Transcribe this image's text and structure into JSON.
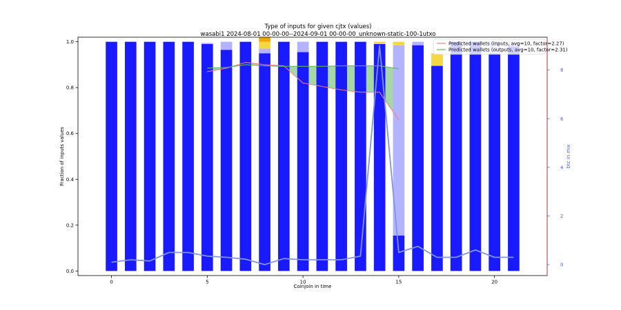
{
  "chart_data": {
    "type": "bar",
    "title": "Type of inputs for given cjtx (values)",
    "subtitle": "wasabi1 2024-08-01 00-00-00--2024-09-01 00-00-00_unknown-static-100-1utxo",
    "xlabel": "Coinjoin in time",
    "ylabel": "Fraction of inputs values",
    "y2label": "btc in mix",
    "xlim": [
      -1.75,
      22.75
    ],
    "ylim": [
      -0.02,
      1.02
    ],
    "y2lim": [
      -0.45,
      9.35
    ],
    "x_ticks": [
      0,
      5,
      10,
      15,
      20
    ],
    "y_ticks": [
      0.0,
      0.2,
      0.4,
      0.6,
      0.8,
      1.0
    ],
    "y2_ticks": [
      0,
      2,
      4,
      6,
      8
    ],
    "x": [
      0,
      1,
      2,
      3,
      4,
      5,
      6,
      7,
      8,
      9,
      10,
      11,
      12,
      13,
      14,
      15,
      16,
      17,
      18,
      19,
      20,
      21
    ],
    "stacked_series": [
      {
        "color": "#1a1aff",
        "values": [
          1.0,
          1.0,
          1.0,
          1.0,
          1.0,
          0.99,
          0.965,
          1.0,
          0.95,
          1.0,
          0.955,
          1.0,
          1.0,
          1.0,
          0.99,
          0.155,
          0.985,
          0.895,
          1.0,
          1.0,
          0.95,
          0.98
        ]
      },
      {
        "color": "#b3b3ff",
        "values": [
          0,
          0,
          0,
          0,
          0,
          0.005,
          0.035,
          0,
          0.02,
          0,
          0.045,
          0,
          0,
          0,
          0,
          0.83,
          0.015,
          0,
          0,
          0,
          0.05,
          0.02
        ]
      },
      {
        "color": "#f5d742",
        "values": [
          0,
          0,
          0,
          0,
          0,
          0,
          0,
          0,
          0.03,
          0,
          0,
          0,
          0,
          0,
          0.01,
          0.015,
          0,
          0.055,
          0,
          0,
          0,
          0
        ]
      },
      {
        "color": "#f0a500",
        "values": [
          0,
          0,
          0,
          0,
          0,
          0,
          0,
          0,
          0.02,
          0,
          0,
          0,
          0,
          0,
          0,
          0,
          0,
          0,
          0,
          0,
          0,
          0
        ]
      }
    ],
    "series": [
      {
        "name": "Predicted wallets (inputs, avg=10, factor=2.27)",
        "color": "#f08080",
        "x": [
          5,
          6,
          7,
          8,
          9,
          10,
          11,
          12,
          13,
          14,
          15
        ],
        "values": [
          0.87,
          0.885,
          0.91,
          0.9,
          0.895,
          0.82,
          0.805,
          0.79,
          0.78,
          0.78,
          0.66
        ]
      },
      {
        "name": "Predicted wallets (outputs, avg=10, factor=2.31)",
        "color": "#5cb85c",
        "x": [
          5,
          6,
          7,
          8,
          9,
          10,
          11,
          12,
          13,
          14,
          15
        ],
        "values": [
          0.885,
          0.888,
          0.9,
          0.895,
          0.893,
          0.893,
          0.893,
          0.895,
          0.895,
          0.895,
          0.882
        ]
      },
      {
        "name": "btc in mix",
        "axis": "right",
        "color": "#8094e0",
        "x": [
          0,
          1,
          2,
          3,
          4,
          5,
          6,
          7,
          8,
          9,
          10,
          11,
          12,
          13,
          14,
          15,
          16,
          17,
          18,
          19,
          20,
          21
        ],
        "values": [
          0.1,
          0.2,
          0.15,
          0.5,
          0.5,
          0.35,
          0.3,
          0.22,
          0.0,
          0.25,
          0.2,
          0.2,
          0.2,
          0.35,
          9.0,
          0.5,
          0.75,
          0.3,
          0.3,
          0.6,
          0.3,
          0.3
        ]
      }
    ],
    "legend_position": "top-right",
    "grid": false
  }
}
